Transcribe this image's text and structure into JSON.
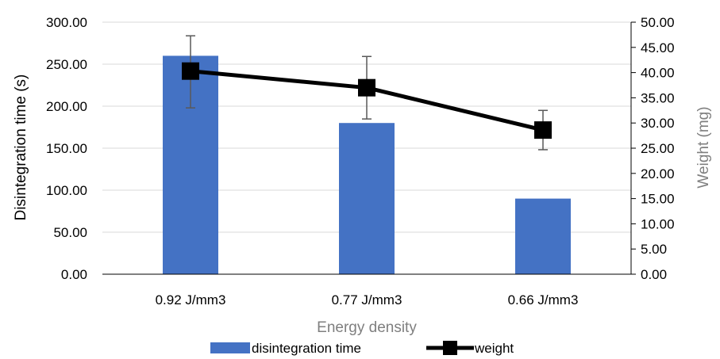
{
  "chart_data": {
    "type": "bar",
    "categories": [
      "0.92 J/mm3",
      "0.77 J/mm3",
      "0.66 J/mm3"
    ],
    "xlabel": "Energy density",
    "ylabel": "Disintegration time (s)",
    "y2label": "Weight (mg)",
    "ylim": [
      0,
      300
    ],
    "y2lim": [
      0,
      50
    ],
    "yticks": [
      "0.00",
      "50.00",
      "100.00",
      "150.00",
      "200.00",
      "250.00",
      "300.00"
    ],
    "y2ticks": [
      "0.00",
      "5.00",
      "10.00",
      "15.00",
      "20.00",
      "25.00",
      "30.00",
      "35.00",
      "40.00",
      "45.00",
      "50.00"
    ],
    "grid": true,
    "legend": "bottom",
    "series": [
      {
        "name": "disintegration time",
        "type": "bar",
        "axis": "left",
        "values": [
          260,
          180,
          90
        ],
        "color": "#4472c4"
      },
      {
        "name": "weight",
        "type": "line",
        "axis": "right",
        "values": [
          40.3,
          37.0,
          28.6
        ],
        "error": [
          [
            33.0,
            47.3
          ],
          [
            30.8,
            43.2
          ],
          [
            24.7,
            32.5
          ]
        ],
        "color": "#000000"
      }
    ]
  }
}
